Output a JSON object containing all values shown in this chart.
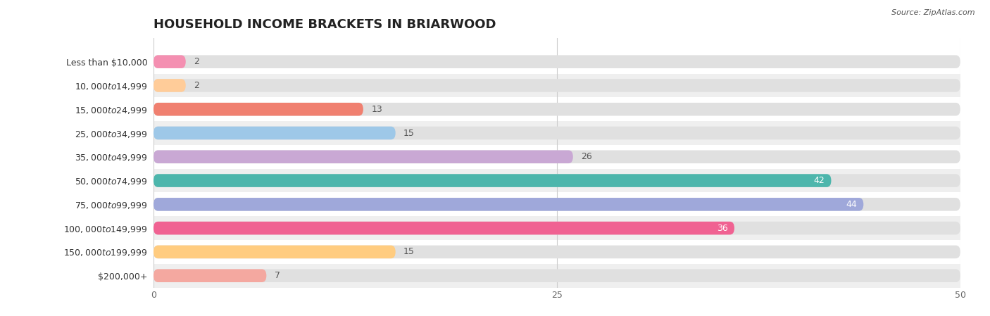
{
  "title": "HOUSEHOLD INCOME BRACKETS IN BRIARWOOD",
  "source": "Source: ZipAtlas.com",
  "categories": [
    "Less than $10,000",
    "$10,000 to $14,999",
    "$15,000 to $24,999",
    "$25,000 to $34,999",
    "$35,000 to $49,999",
    "$50,000 to $74,999",
    "$75,000 to $99,999",
    "$100,000 to $149,999",
    "$150,000 to $199,999",
    "$200,000+"
  ],
  "values": [
    2,
    2,
    13,
    15,
    26,
    42,
    44,
    36,
    15,
    7
  ],
  "bar_colors": [
    "#F48FB1",
    "#FFCC99",
    "#F08070",
    "#9EC8E8",
    "#C9A8D4",
    "#4DB6AC",
    "#9FA8DA",
    "#F06292",
    "#FFCC80",
    "#F4A8A0"
  ],
  "xlim": [
    0,
    50
  ],
  "xticks": [
    0,
    25,
    50
  ],
  "row_bg_colors": [
    "#ffffff",
    "#efefef"
  ],
  "bar_bg_color": "#e0e0e0",
  "background_color": "#ffffff",
  "title_fontsize": 13,
  "label_fontsize": 9,
  "value_fontsize": 9,
  "value_inside_threshold": 30
}
